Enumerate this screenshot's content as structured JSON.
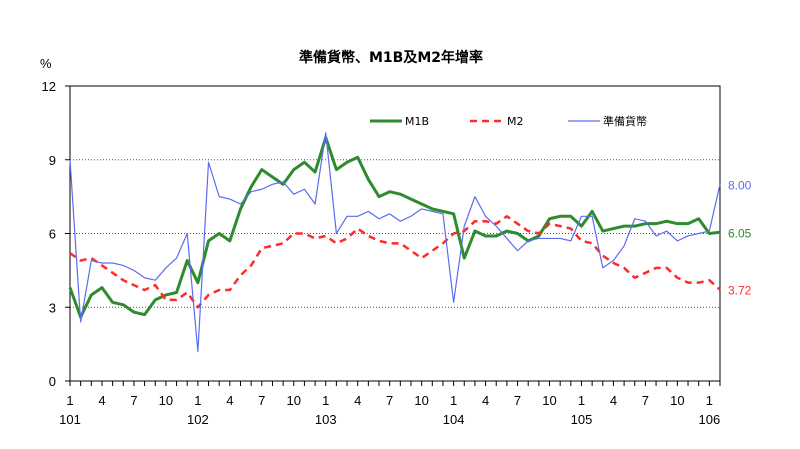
{
  "chart_data": {
    "type": "line",
    "title": "準備貨幣、M1B及M2年增率",
    "ylabel": "%",
    "ylim": [
      0,
      12
    ],
    "yticks": [
      0,
      3,
      6,
      9,
      12
    ],
    "month_ticks": [
      1,
      4,
      7,
      10
    ],
    "year_labels": [
      {
        "index": 0,
        "label": "101"
      },
      {
        "index": 12,
        "label": "102"
      },
      {
        "index": 24,
        "label": "103"
      },
      {
        "index": 36,
        "label": "104"
      },
      {
        "index": 48,
        "label": "105"
      },
      {
        "index": 60,
        "label": "106"
      }
    ],
    "series": [
      {
        "name": "M1B",
        "color": "#2e8b2e",
        "dash": "",
        "width": 3,
        "end_label": "6.05",
        "values": [
          3.8,
          2.6,
          3.5,
          3.8,
          3.2,
          3.1,
          2.8,
          2.7,
          3.3,
          3.5,
          3.6,
          4.9,
          4.0,
          5.7,
          6.0,
          5.7,
          7.0,
          7.9,
          8.6,
          8.3,
          8.0,
          8.6,
          8.9,
          8.5,
          9.9,
          8.6,
          8.9,
          9.1,
          8.2,
          7.5,
          7.7,
          7.6,
          7.4,
          7.2,
          7.0,
          6.9,
          6.8,
          5.0,
          6.1,
          5.9,
          5.9,
          6.1,
          6.0,
          5.7,
          5.9,
          6.6,
          6.7,
          6.7,
          6.3,
          6.9,
          6.1,
          6.2,
          6.3,
          6.3,
          6.4,
          6.4,
          6.5,
          6.4,
          6.4,
          6.6,
          6.0,
          6.05
        ]
      },
      {
        "name": "M2",
        "color": "#ff2a2a",
        "dash": "7,5",
        "width": 2.5,
        "end_label": "3.72",
        "values": [
          5.2,
          4.9,
          5.0,
          4.7,
          4.4,
          4.1,
          3.9,
          3.7,
          3.9,
          3.3,
          3.3,
          3.6,
          3.0,
          3.5,
          3.7,
          3.7,
          4.3,
          4.7,
          5.4,
          5.5,
          5.6,
          6.0,
          6.0,
          5.8,
          5.9,
          5.6,
          5.8,
          6.2,
          5.9,
          5.7,
          5.6,
          5.6,
          5.3,
          5.0,
          5.3,
          5.6,
          6.0,
          6.1,
          6.5,
          6.5,
          6.4,
          6.7,
          6.4,
          6.1,
          6.0,
          6.4,
          6.3,
          6.2,
          5.7,
          5.6,
          5.1,
          4.8,
          4.6,
          4.2,
          4.4,
          4.6,
          4.6,
          4.2,
          4.0,
          4.0,
          4.1,
          3.72
        ]
      },
      {
        "name": "準備貨幣",
        "color": "#5a6cf0",
        "dash": "",
        "width": 1.2,
        "end_label": "8.00",
        "values": [
          9.0,
          2.4,
          4.9,
          4.8,
          4.8,
          4.7,
          4.5,
          4.2,
          4.1,
          4.6,
          5.0,
          6.0,
          1.2,
          8.9,
          7.5,
          7.4,
          7.2,
          7.7,
          7.8,
          8.0,
          8.1,
          7.6,
          7.8,
          7.2,
          10.1,
          6.0,
          6.7,
          6.7,
          6.9,
          6.6,
          6.8,
          6.5,
          6.7,
          7.0,
          6.9,
          6.8,
          3.2,
          6.3,
          7.5,
          6.7,
          6.3,
          5.8,
          5.3,
          5.7,
          5.8,
          5.8,
          5.8,
          5.7,
          6.7,
          6.7,
          4.6,
          4.9,
          5.5,
          6.6,
          6.5,
          5.9,
          6.1,
          5.7,
          5.9,
          6.0,
          6.1,
          8.0
        ]
      }
    ],
    "legend_position": "top-right",
    "grid": "horizontal dotted"
  }
}
